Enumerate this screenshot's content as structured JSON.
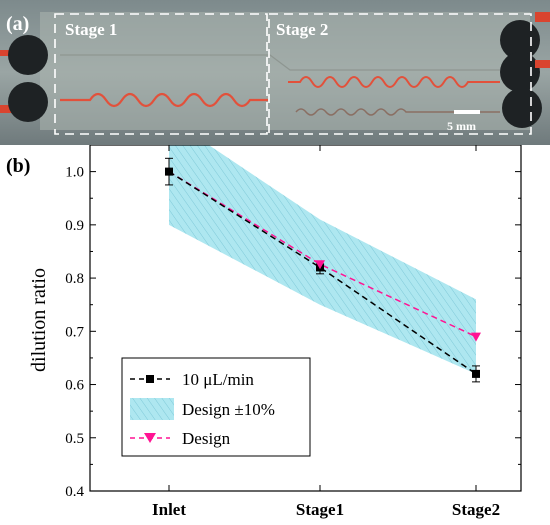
{
  "panel_a": {
    "label": "(a)",
    "stages": [
      "Stage 1",
      "Stage 2"
    ],
    "scale_bar": "5 mm"
  },
  "panel_b_label": "(b)",
  "colors": {
    "measured": "#000000",
    "design": "#ff1493",
    "band_fill": "#aee7f0",
    "band_hatch": "#7fc9d8"
  },
  "chart_data": {
    "type": "line",
    "categories": [
      "Inlet",
      "Stage1",
      "Stage2"
    ],
    "ylabel": "dilution ratio",
    "ylim": [
      0.4,
      1.05
    ],
    "yticks": [
      "0.4",
      "0.5",
      "0.6",
      "0.7",
      "0.8",
      "0.9",
      "1.0"
    ],
    "series": [
      {
        "name": "10 μL/min",
        "style": "dashed-square",
        "values": [
          1.0,
          0.82,
          0.62
        ],
        "errors": [
          0.025,
          0.012,
          0.015
        ]
      },
      {
        "name": "Design ±10%",
        "style": "band",
        "lower": [
          0.9,
          0.75,
          0.62
        ],
        "upper": [
          1.1,
          0.91,
          0.76
        ]
      },
      {
        "name": "Design",
        "style": "dashed-triangle",
        "values": [
          1.0,
          0.826,
          0.69
        ]
      }
    ]
  }
}
